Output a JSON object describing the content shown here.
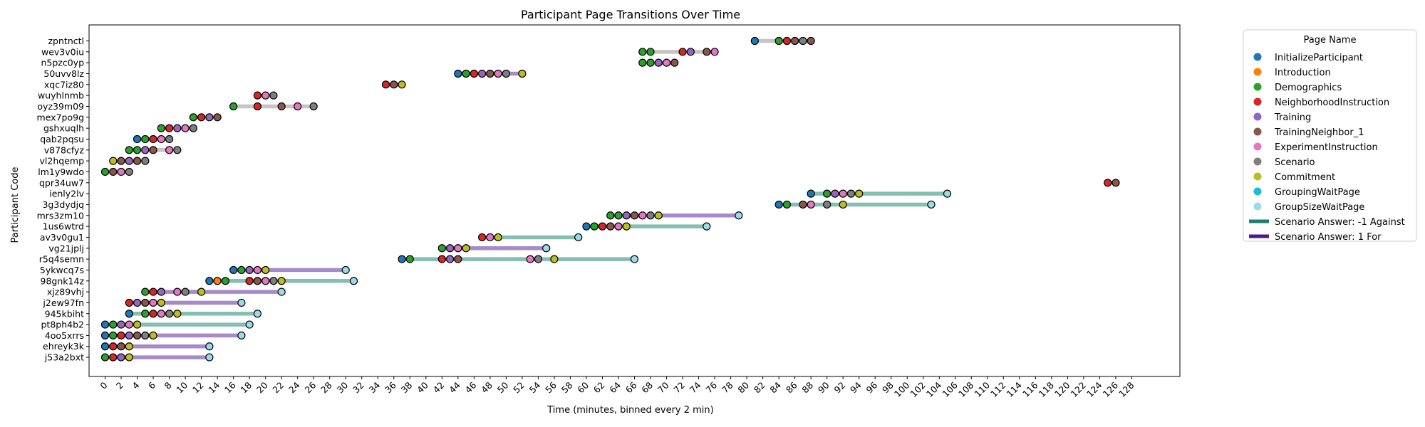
{
  "chart_data": {
    "type": "scatter",
    "title": "Participant Page Transitions Over Time",
    "xlabel": "Time (minutes, binned every 2 min)",
    "ylabel": "Participant Code",
    "xlim": [
      -2,
      134
    ],
    "xticks": [
      0,
      2,
      4,
      6,
      8,
      10,
      12,
      14,
      16,
      18,
      20,
      22,
      24,
      26,
      28,
      30,
      32,
      34,
      36,
      38,
      40,
      42,
      44,
      46,
      48,
      50,
      52,
      54,
      56,
      58,
      60,
      62,
      64,
      66,
      68,
      70,
      72,
      74,
      76,
      78,
      80,
      82,
      84,
      86,
      88,
      90,
      92,
      94,
      96,
      98,
      100,
      102,
      104,
      106,
      108,
      110,
      112,
      114,
      116,
      118,
      120,
      122,
      124,
      126,
      128
    ],
    "grid": false,
    "legend": {
      "title": "Page Name",
      "placement": "outside-right",
      "pages": [
        {
          "name": "InitializeParticipant",
          "color": "#1f77b4"
        },
        {
          "name": "Introduction",
          "color": "#ff7f0e"
        },
        {
          "name": "Demographics",
          "color": "#2ca02c"
        },
        {
          "name": "NeighborhoodInstruction",
          "color": "#d62728"
        },
        {
          "name": "Training",
          "color": "#9467bd"
        },
        {
          "name": "TrainingNeighbor_1",
          "color": "#8c564b"
        },
        {
          "name": "ExperimentInstruction",
          "color": "#e377c2"
        },
        {
          "name": "Scenario",
          "color": "#7f7f7f"
        },
        {
          "name": "Commitment",
          "color": "#bcbd22"
        },
        {
          "name": "GroupingWaitPage",
          "color": "#17becf"
        },
        {
          "name": "GroupSizeWaitPage",
          "color": "#9edae5"
        }
      ],
      "answers": [
        {
          "name": "Scenario Answer: -1 Against",
          "key": "against",
          "color": "#1b7e6e"
        },
        {
          "name": "Scenario Answer: 1 For",
          "key": "for",
          "color": "#4b1a8c"
        }
      ]
    },
    "line_colors": {
      "against": "#85bfb2",
      "for": "#a68bc8",
      "none": "#c5c5c5"
    },
    "participants": [
      {
        "code": "zpntnctl",
        "answer": "none",
        "points": [
          [
            81,
            0
          ],
          [
            84,
            2
          ],
          [
            85,
            3
          ],
          [
            86,
            5
          ],
          [
            87,
            7
          ],
          [
            88,
            5
          ]
        ]
      },
      {
        "code": "wev3v0iu",
        "answer": "none",
        "points": [
          [
            67,
            2
          ],
          [
            68,
            2
          ],
          [
            72,
            3
          ],
          [
            73,
            4
          ],
          [
            75,
            5
          ],
          [
            76,
            6
          ]
        ]
      },
      {
        "code": "n5pzc0yp",
        "answer": "none",
        "points": [
          [
            67,
            2
          ],
          [
            68,
            2
          ],
          [
            69,
            4
          ],
          [
            70,
            6
          ],
          [
            71,
            5
          ]
        ]
      },
      {
        "code": "50uvv8lz",
        "answer": "for",
        "points": [
          [
            44,
            0
          ],
          [
            45,
            2
          ],
          [
            46,
            3
          ],
          [
            47,
            4
          ],
          [
            48,
            5
          ],
          [
            49,
            6
          ],
          [
            50,
            7
          ],
          [
            52,
            8
          ]
        ]
      },
      {
        "code": "xqc7iz80",
        "answer": "none",
        "points": [
          [
            35,
            3
          ],
          [
            36,
            5
          ],
          [
            37,
            8
          ]
        ]
      },
      {
        "code": "wuyhlnmb",
        "answer": "none",
        "points": [
          [
            19,
            3
          ],
          [
            20,
            6
          ],
          [
            21,
            7
          ]
        ]
      },
      {
        "code": "oyz39m09",
        "answer": "none",
        "points": [
          [
            16,
            2
          ],
          [
            19,
            3
          ],
          [
            22,
            5
          ],
          [
            24,
            6
          ],
          [
            26,
            7
          ]
        ]
      },
      {
        "code": "mex7po9g",
        "answer": "none",
        "points": [
          [
            11,
            2
          ],
          [
            12,
            3
          ],
          [
            13,
            4
          ],
          [
            14,
            5
          ]
        ]
      },
      {
        "code": "gshxuqlh",
        "answer": "none",
        "points": [
          [
            7,
            2
          ],
          [
            8,
            3
          ],
          [
            9,
            4
          ],
          [
            10,
            6
          ],
          [
            11,
            7
          ]
        ]
      },
      {
        "code": "qab2pqsu",
        "answer": "none",
        "points": [
          [
            4,
            0
          ],
          [
            5,
            2
          ],
          [
            6,
            3
          ],
          [
            7,
            6
          ],
          [
            8,
            7
          ]
        ]
      },
      {
        "code": "v878cfyz",
        "answer": "none",
        "points": [
          [
            3,
            2
          ],
          [
            4,
            2
          ],
          [
            5,
            4
          ],
          [
            6,
            5
          ],
          [
            8,
            6
          ],
          [
            9,
            7
          ]
        ]
      },
      {
        "code": "vl2hqemp",
        "answer": "none",
        "points": [
          [
            1,
            8
          ],
          [
            2,
            5
          ],
          [
            3,
            4
          ],
          [
            4,
            5
          ],
          [
            5,
            7
          ]
        ]
      },
      {
        "code": "lm1y9wdo",
        "answer": "none",
        "points": [
          [
            0,
            2
          ],
          [
            1,
            5
          ],
          [
            2,
            6
          ],
          [
            3,
            7
          ]
        ]
      },
      {
        "code": "qpr34uw7",
        "answer": "none",
        "points": [
          [
            125,
            3
          ],
          [
            126,
            5
          ]
        ]
      },
      {
        "code": "ienly2lv",
        "answer": "against",
        "points": [
          [
            88,
            0
          ],
          [
            90,
            2
          ],
          [
            91,
            4
          ],
          [
            92,
            6
          ],
          [
            93,
            7
          ],
          [
            94,
            8
          ],
          [
            105,
            10
          ]
        ]
      },
      {
        "code": "3g3dydjq",
        "answer": "against",
        "points": [
          [
            84,
            0
          ],
          [
            85,
            2
          ],
          [
            87,
            5
          ],
          [
            88,
            6
          ],
          [
            90,
            7
          ],
          [
            92,
            8
          ],
          [
            103,
            10
          ]
        ]
      },
      {
        "code": "mrs3zm10",
        "answer": "for",
        "points": [
          [
            63,
            2
          ],
          [
            64,
            2
          ],
          [
            65,
            4
          ],
          [
            66,
            5
          ],
          [
            67,
            6
          ],
          [
            68,
            7
          ],
          [
            69,
            8
          ],
          [
            79,
            10
          ]
        ]
      },
      {
        "code": "1us6wtrd",
        "answer": "against",
        "points": [
          [
            60,
            0
          ],
          [
            61,
            2
          ],
          [
            62,
            3
          ],
          [
            63,
            5
          ],
          [
            64,
            6
          ],
          [
            65,
            8
          ],
          [
            75,
            10
          ]
        ]
      },
      {
        "code": "av3v0gu1",
        "answer": "against",
        "points": [
          [
            47,
            3
          ],
          [
            48,
            6
          ],
          [
            49,
            8
          ],
          [
            59,
            10
          ]
        ]
      },
      {
        "code": "vg21jplj",
        "answer": "for",
        "points": [
          [
            42,
            2
          ],
          [
            43,
            4
          ],
          [
            44,
            6
          ],
          [
            45,
            8
          ],
          [
            55,
            10
          ]
        ]
      },
      {
        "code": "r5q4semn",
        "answer": "against",
        "points": [
          [
            37,
            0
          ],
          [
            38,
            2
          ],
          [
            42,
            3
          ],
          [
            43,
            4
          ],
          [
            44,
            5
          ],
          [
            53,
            6
          ],
          [
            54,
            7
          ],
          [
            56,
            8
          ],
          [
            66,
            10
          ]
        ]
      },
      {
        "code": "5ykwcq7s",
        "answer": "for",
        "points": [
          [
            16,
            0
          ],
          [
            17,
            2
          ],
          [
            18,
            4
          ],
          [
            19,
            6
          ],
          [
            20,
            8
          ],
          [
            30,
            10
          ]
        ]
      },
      {
        "code": "98gnk14z",
        "answer": "against",
        "points": [
          [
            13,
            0
          ],
          [
            14,
            1
          ],
          [
            15,
            2
          ],
          [
            18,
            3
          ],
          [
            19,
            5
          ],
          [
            20,
            6
          ],
          [
            21,
            7
          ],
          [
            22,
            8
          ],
          [
            31,
            10
          ]
        ]
      },
      {
        "code": "xjz89vhj",
        "answer": "for",
        "points": [
          [
            5,
            2
          ],
          [
            6,
            3
          ],
          [
            7,
            4
          ],
          [
            9,
            6
          ],
          [
            10,
            7
          ],
          [
            12,
            8
          ],
          [
            22,
            10
          ]
        ]
      },
      {
        "code": "j2ew97fn",
        "answer": "for",
        "points": [
          [
            3,
            3
          ],
          [
            4,
            4
          ],
          [
            5,
            5
          ],
          [
            6,
            6
          ],
          [
            7,
            8
          ],
          [
            17,
            10
          ]
        ]
      },
      {
        "code": "945kbiht",
        "answer": "against",
        "points": [
          [
            3,
            0
          ],
          [
            5,
            2
          ],
          [
            6,
            3
          ],
          [
            7,
            6
          ],
          [
            8,
            7
          ],
          [
            9,
            8
          ],
          [
            19,
            10
          ]
        ]
      },
      {
        "code": "pt8ph4b2",
        "answer": "against",
        "points": [
          [
            0,
            0
          ],
          [
            1,
            2
          ],
          [
            2,
            4
          ],
          [
            3,
            6
          ],
          [
            4,
            8
          ],
          [
            18,
            10
          ]
        ]
      },
      {
        "code": "4oo5xrrs",
        "answer": "for",
        "points": [
          [
            0,
            0
          ],
          [
            1,
            2
          ],
          [
            2,
            3
          ],
          [
            3,
            4
          ],
          [
            4,
            5
          ],
          [
            5,
            7
          ],
          [
            6,
            8
          ],
          [
            17,
            10
          ]
        ]
      },
      {
        "code": "ehreyk3k",
        "answer": "for",
        "points": [
          [
            0,
            0
          ],
          [
            1,
            3
          ],
          [
            2,
            5
          ],
          [
            3,
            8
          ],
          [
            13,
            10
          ]
        ]
      },
      {
        "code": "j53a2bxt",
        "answer": "for",
        "points": [
          [
            0,
            2
          ],
          [
            1,
            3
          ],
          [
            2,
            4
          ],
          [
            3,
            8
          ],
          [
            13,
            10
          ]
        ]
      }
    ]
  }
}
